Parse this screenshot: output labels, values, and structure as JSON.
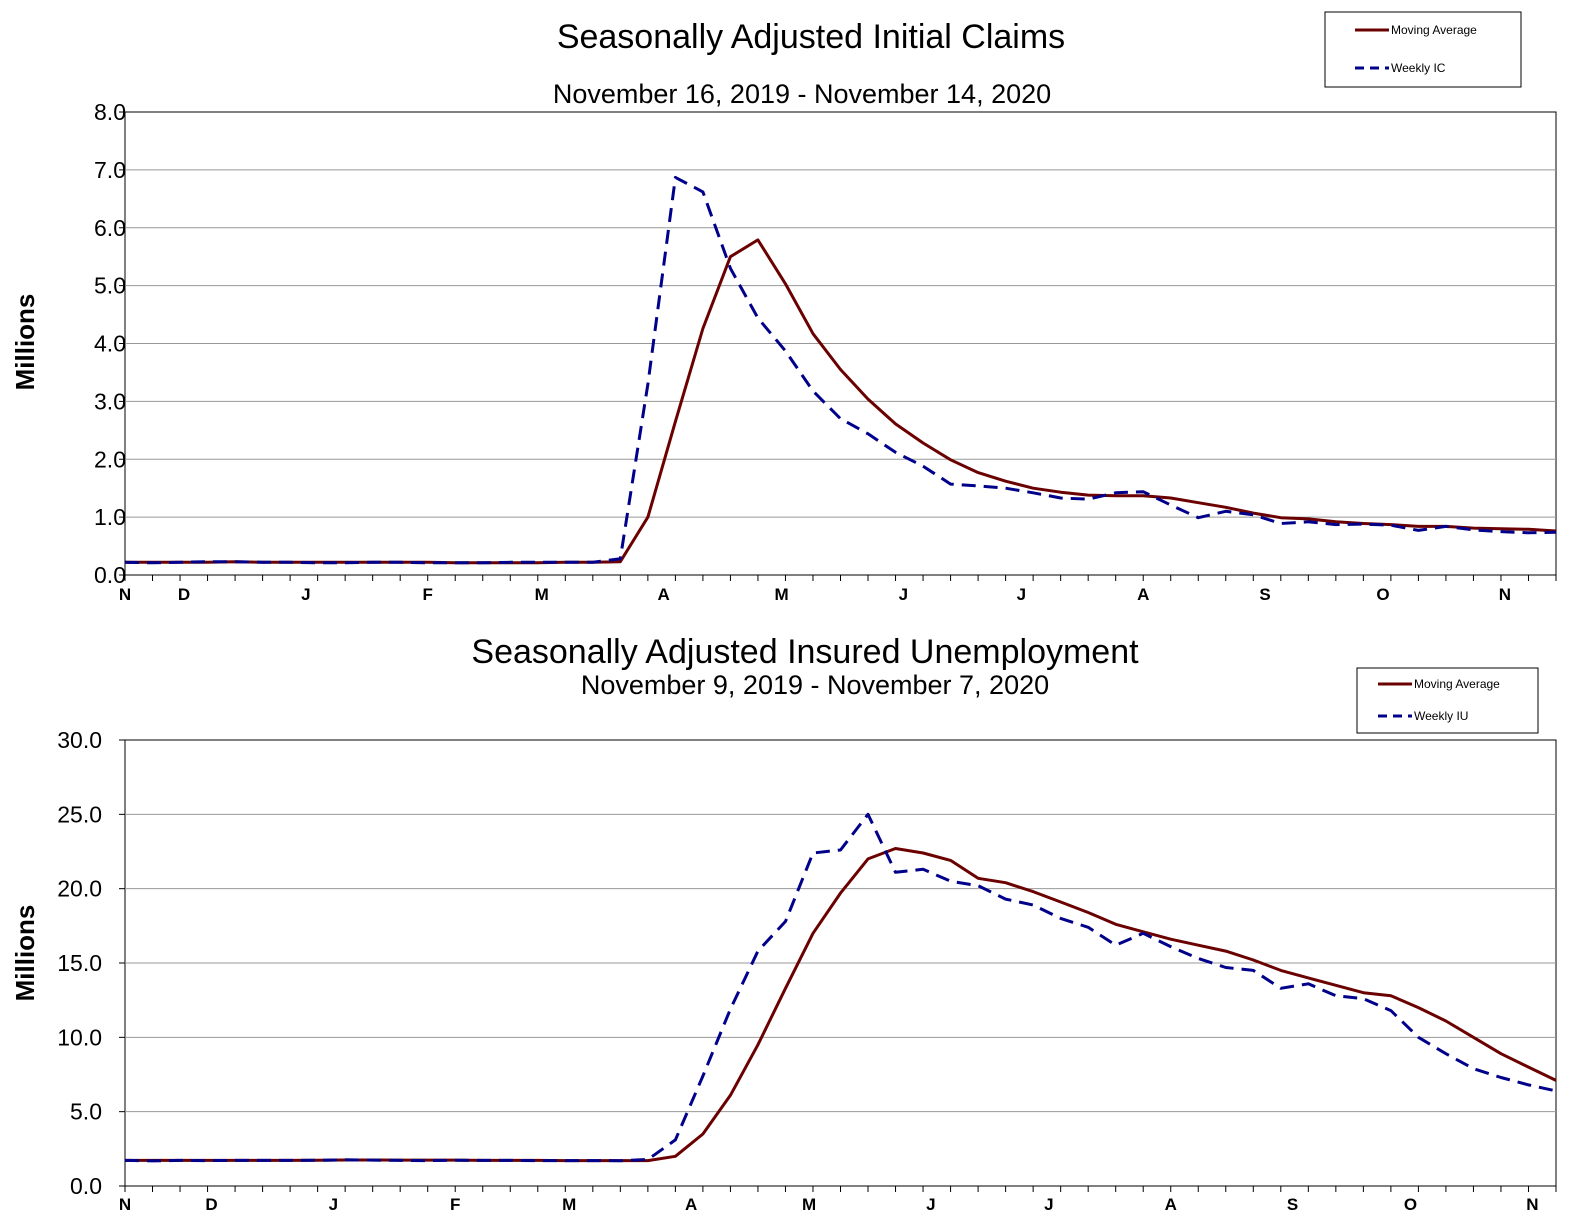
{
  "chart_data": [
    {
      "type": "line",
      "title": "Seasonally Adjusted Initial Claims",
      "subtitle": "November 16, 2019 - November 14, 2020",
      "xlabel": "",
      "ylabel": "Millions",
      "ylim": [
        0,
        8
      ],
      "yticks": [
        "0.0",
        "1.0",
        "2.0",
        "3.0",
        "4.0",
        "5.0",
        "6.0",
        "7.0",
        "8.0"
      ],
      "month_labels": [
        "N",
        "D",
        "J",
        "F",
        "M",
        "A",
        "M",
        "J",
        "J",
        "A",
        "S",
        "O",
        "N"
      ],
      "grid": true,
      "legend_position": "top-right",
      "colors": {
        "moving_average": "#6b0000",
        "weekly": "#00008b"
      },
      "x": [
        "2019-11-16",
        "2019-11-23",
        "2019-11-30",
        "2019-12-07",
        "2019-12-14",
        "2019-12-21",
        "2019-12-28",
        "2020-01-04",
        "2020-01-11",
        "2020-01-18",
        "2020-01-25",
        "2020-02-01",
        "2020-02-08",
        "2020-02-15",
        "2020-02-22",
        "2020-02-29",
        "2020-03-07",
        "2020-03-14",
        "2020-03-21",
        "2020-03-28",
        "2020-04-04",
        "2020-04-11",
        "2020-04-18",
        "2020-04-25",
        "2020-05-02",
        "2020-05-09",
        "2020-05-16",
        "2020-05-23",
        "2020-05-30",
        "2020-06-06",
        "2020-06-13",
        "2020-06-20",
        "2020-06-27",
        "2020-07-04",
        "2020-07-11",
        "2020-07-18",
        "2020-07-25",
        "2020-08-01",
        "2020-08-08",
        "2020-08-15",
        "2020-08-22",
        "2020-08-29",
        "2020-09-05",
        "2020-09-12",
        "2020-09-19",
        "2020-09-26",
        "2020-10-03",
        "2020-10-10",
        "2020-10-17",
        "2020-10-24",
        "2020-10-31",
        "2020-11-07",
        "2020-11-14"
      ],
      "series": [
        {
          "name": "Moving Average",
          "style": "solid",
          "values": [
            0.22,
            0.22,
            0.22,
            0.22,
            0.23,
            0.22,
            0.22,
            0.22,
            0.22,
            0.22,
            0.22,
            0.22,
            0.21,
            0.21,
            0.21,
            0.21,
            0.22,
            0.22,
            0.23,
            1.0,
            2.65,
            4.26,
            5.5,
            5.79,
            5.03,
            4.17,
            3.55,
            3.04,
            2.61,
            2.28,
            1.99,
            1.77,
            1.62,
            1.5,
            1.43,
            1.38,
            1.37,
            1.37,
            1.33,
            1.25,
            1.17,
            1.07,
            0.99,
            0.97,
            0.92,
            0.89,
            0.87,
            0.84,
            0.84,
            0.81,
            0.8,
            0.79,
            0.76
          ]
        },
        {
          "name": "Weekly IC",
          "style": "dashed",
          "values": [
            0.22,
            0.21,
            0.22,
            0.23,
            0.23,
            0.22,
            0.22,
            0.21,
            0.21,
            0.22,
            0.22,
            0.21,
            0.21,
            0.21,
            0.22,
            0.22,
            0.22,
            0.22,
            0.28,
            3.3,
            6.87,
            6.62,
            5.3,
            4.44,
            3.87,
            3.18,
            2.7,
            2.44,
            2.12,
            1.88,
            1.57,
            1.54,
            1.5,
            1.42,
            1.33,
            1.31,
            1.42,
            1.44,
            1.21,
            0.99,
            1.1,
            1.04,
            0.89,
            0.92,
            0.87,
            0.88,
            0.86,
            0.77,
            0.84,
            0.78,
            0.75,
            0.73,
            0.74
          ]
        }
      ]
    },
    {
      "type": "line",
      "title": "Seasonally Adjusted Insured Unemployment",
      "subtitle": "November 9, 2019 - November 7, 2020",
      "xlabel": "",
      "ylabel": "Millions",
      "ylim": [
        0,
        30
      ],
      "yticks": [
        "0.0",
        "5.0",
        "10.0",
        "15.0",
        "20.0",
        "25.0",
        "30.0"
      ],
      "month_labels": [
        "N",
        "D",
        "J",
        "F",
        "M",
        "A",
        "M",
        "J",
        "J",
        "A",
        "S",
        "O",
        "N"
      ],
      "grid": true,
      "legend_position": "top-right",
      "colors": {
        "moving_average": "#6b0000",
        "weekly": "#00008b"
      },
      "x": [
        "2019-11-09",
        "2019-11-16",
        "2019-11-23",
        "2019-11-30",
        "2019-12-07",
        "2019-12-14",
        "2019-12-21",
        "2019-12-28",
        "2020-01-04",
        "2020-01-11",
        "2020-01-18",
        "2020-01-25",
        "2020-02-01",
        "2020-02-08",
        "2020-02-15",
        "2020-02-22",
        "2020-02-29",
        "2020-03-07",
        "2020-03-14",
        "2020-03-21",
        "2020-03-28",
        "2020-04-04",
        "2020-04-11",
        "2020-04-18",
        "2020-04-25",
        "2020-05-02",
        "2020-05-09",
        "2020-05-16",
        "2020-05-23",
        "2020-05-30",
        "2020-06-06",
        "2020-06-13",
        "2020-06-20",
        "2020-06-27",
        "2020-07-04",
        "2020-07-11",
        "2020-07-18",
        "2020-07-25",
        "2020-08-01",
        "2020-08-08",
        "2020-08-15",
        "2020-08-22",
        "2020-08-29",
        "2020-09-05",
        "2020-09-12",
        "2020-09-19",
        "2020-09-26",
        "2020-10-03",
        "2020-10-10",
        "2020-10-17",
        "2020-10-24",
        "2020-10-31",
        "2020-11-07"
      ],
      "series": [
        {
          "name": "Moving Average",
          "style": "solid",
          "values": [
            1.72,
            1.72,
            1.72,
            1.72,
            1.72,
            1.72,
            1.72,
            1.73,
            1.75,
            1.75,
            1.74,
            1.74,
            1.74,
            1.72,
            1.72,
            1.72,
            1.71,
            1.71,
            1.71,
            1.71,
            2.0,
            3.5,
            6.1,
            9.5,
            13.3,
            17.0,
            19.7,
            22.0,
            22.7,
            22.4,
            21.9,
            20.7,
            20.4,
            19.8,
            19.1,
            18.4,
            17.6,
            17.1,
            16.6,
            16.2,
            15.8,
            15.2,
            14.5,
            14.0,
            13.5,
            13.0,
            12.8,
            12.0,
            11.1,
            10.0,
            8.9,
            8.0,
            7.1
          ]
        },
        {
          "name": "Weekly IU",
          "style": "dashed",
          "values": [
            1.72,
            1.69,
            1.72,
            1.71,
            1.72,
            1.72,
            1.72,
            1.73,
            1.76,
            1.74,
            1.72,
            1.71,
            1.73,
            1.72,
            1.72,
            1.71,
            1.71,
            1.71,
            1.7,
            1.78,
            3.1,
            7.4,
            11.9,
            15.8,
            17.8,
            22.4,
            22.6,
            25.0,
            21.1,
            21.3,
            20.5,
            20.2,
            19.3,
            18.9,
            18.0,
            17.4,
            16.2,
            17.0,
            16.1,
            15.3,
            14.7,
            14.5,
            13.3,
            13.6,
            12.8,
            12.6,
            11.8,
            10.0,
            8.9,
            7.9,
            7.3,
            6.8,
            6.4
          ]
        }
      ]
    }
  ]
}
